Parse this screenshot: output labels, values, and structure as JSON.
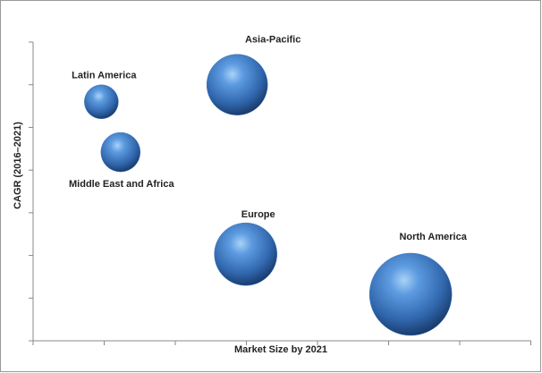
{
  "chart_data": {
    "type": "bubble",
    "x_label": "Market Size by 2021",
    "y_label": "CAGR (2016–2021)",
    "categories": [
      "Latin America",
      "Middle East and Africa",
      "Asia-Pacific",
      "Europe",
      "North America"
    ],
    "x": [
      0.96,
      1.23,
      2.87,
      2.99,
      5.31
    ],
    "values": [
      5.6,
      4.42,
      6.0,
      2.03,
      1.09
    ],
    "sizes": [
      19,
      22,
      34,
      35,
      46
    ],
    "color": "#3f78bf",
    "xlim": [
      0,
      7
    ],
    "ylim": [
      0,
      7
    ],
    "xticks": [
      0,
      1,
      2,
      3,
      4,
      5,
      6,
      7
    ],
    "yticks": [
      0,
      1,
      2,
      3,
      4,
      5,
      6,
      7
    ]
  }
}
